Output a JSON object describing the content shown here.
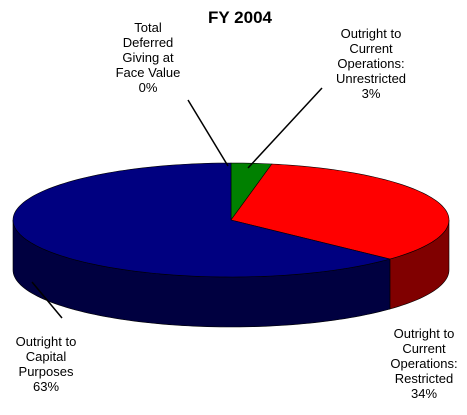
{
  "chart_data": {
    "type": "pie",
    "title": "FY 2004",
    "categories": [
      "Total Deferred Giving at Face Value",
      "Outright to Current Operations: Unrestricted",
      "Outright to Current Operations: Restricted",
      "Outright to Capital Purposes"
    ],
    "values": [
      0,
      3,
      34,
      63
    ],
    "value_labels": [
      "0%",
      "3%",
      "34%",
      "63%"
    ],
    "colors": [
      "#ffff00",
      "#008000",
      "#ff0000",
      "#000080"
    ],
    "side_colors": [
      "#808000",
      "#004000",
      "#800000",
      "#000040"
    ]
  }
}
